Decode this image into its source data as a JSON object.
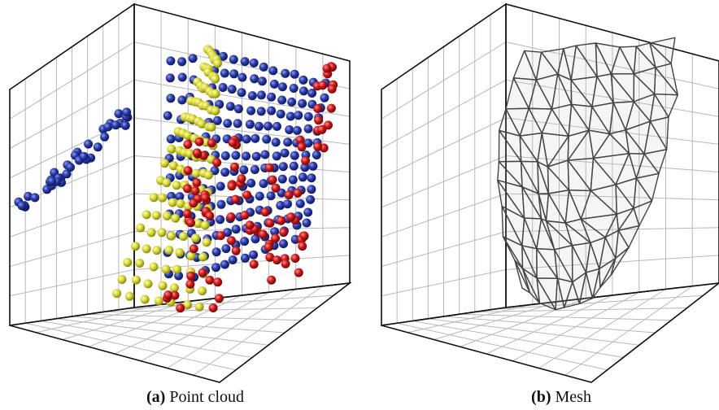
{
  "captions": [
    {
      "label": "(a)",
      "text": "Point cloud"
    },
    {
      "label": "(b)",
      "text": "Mesh"
    }
  ]
}
